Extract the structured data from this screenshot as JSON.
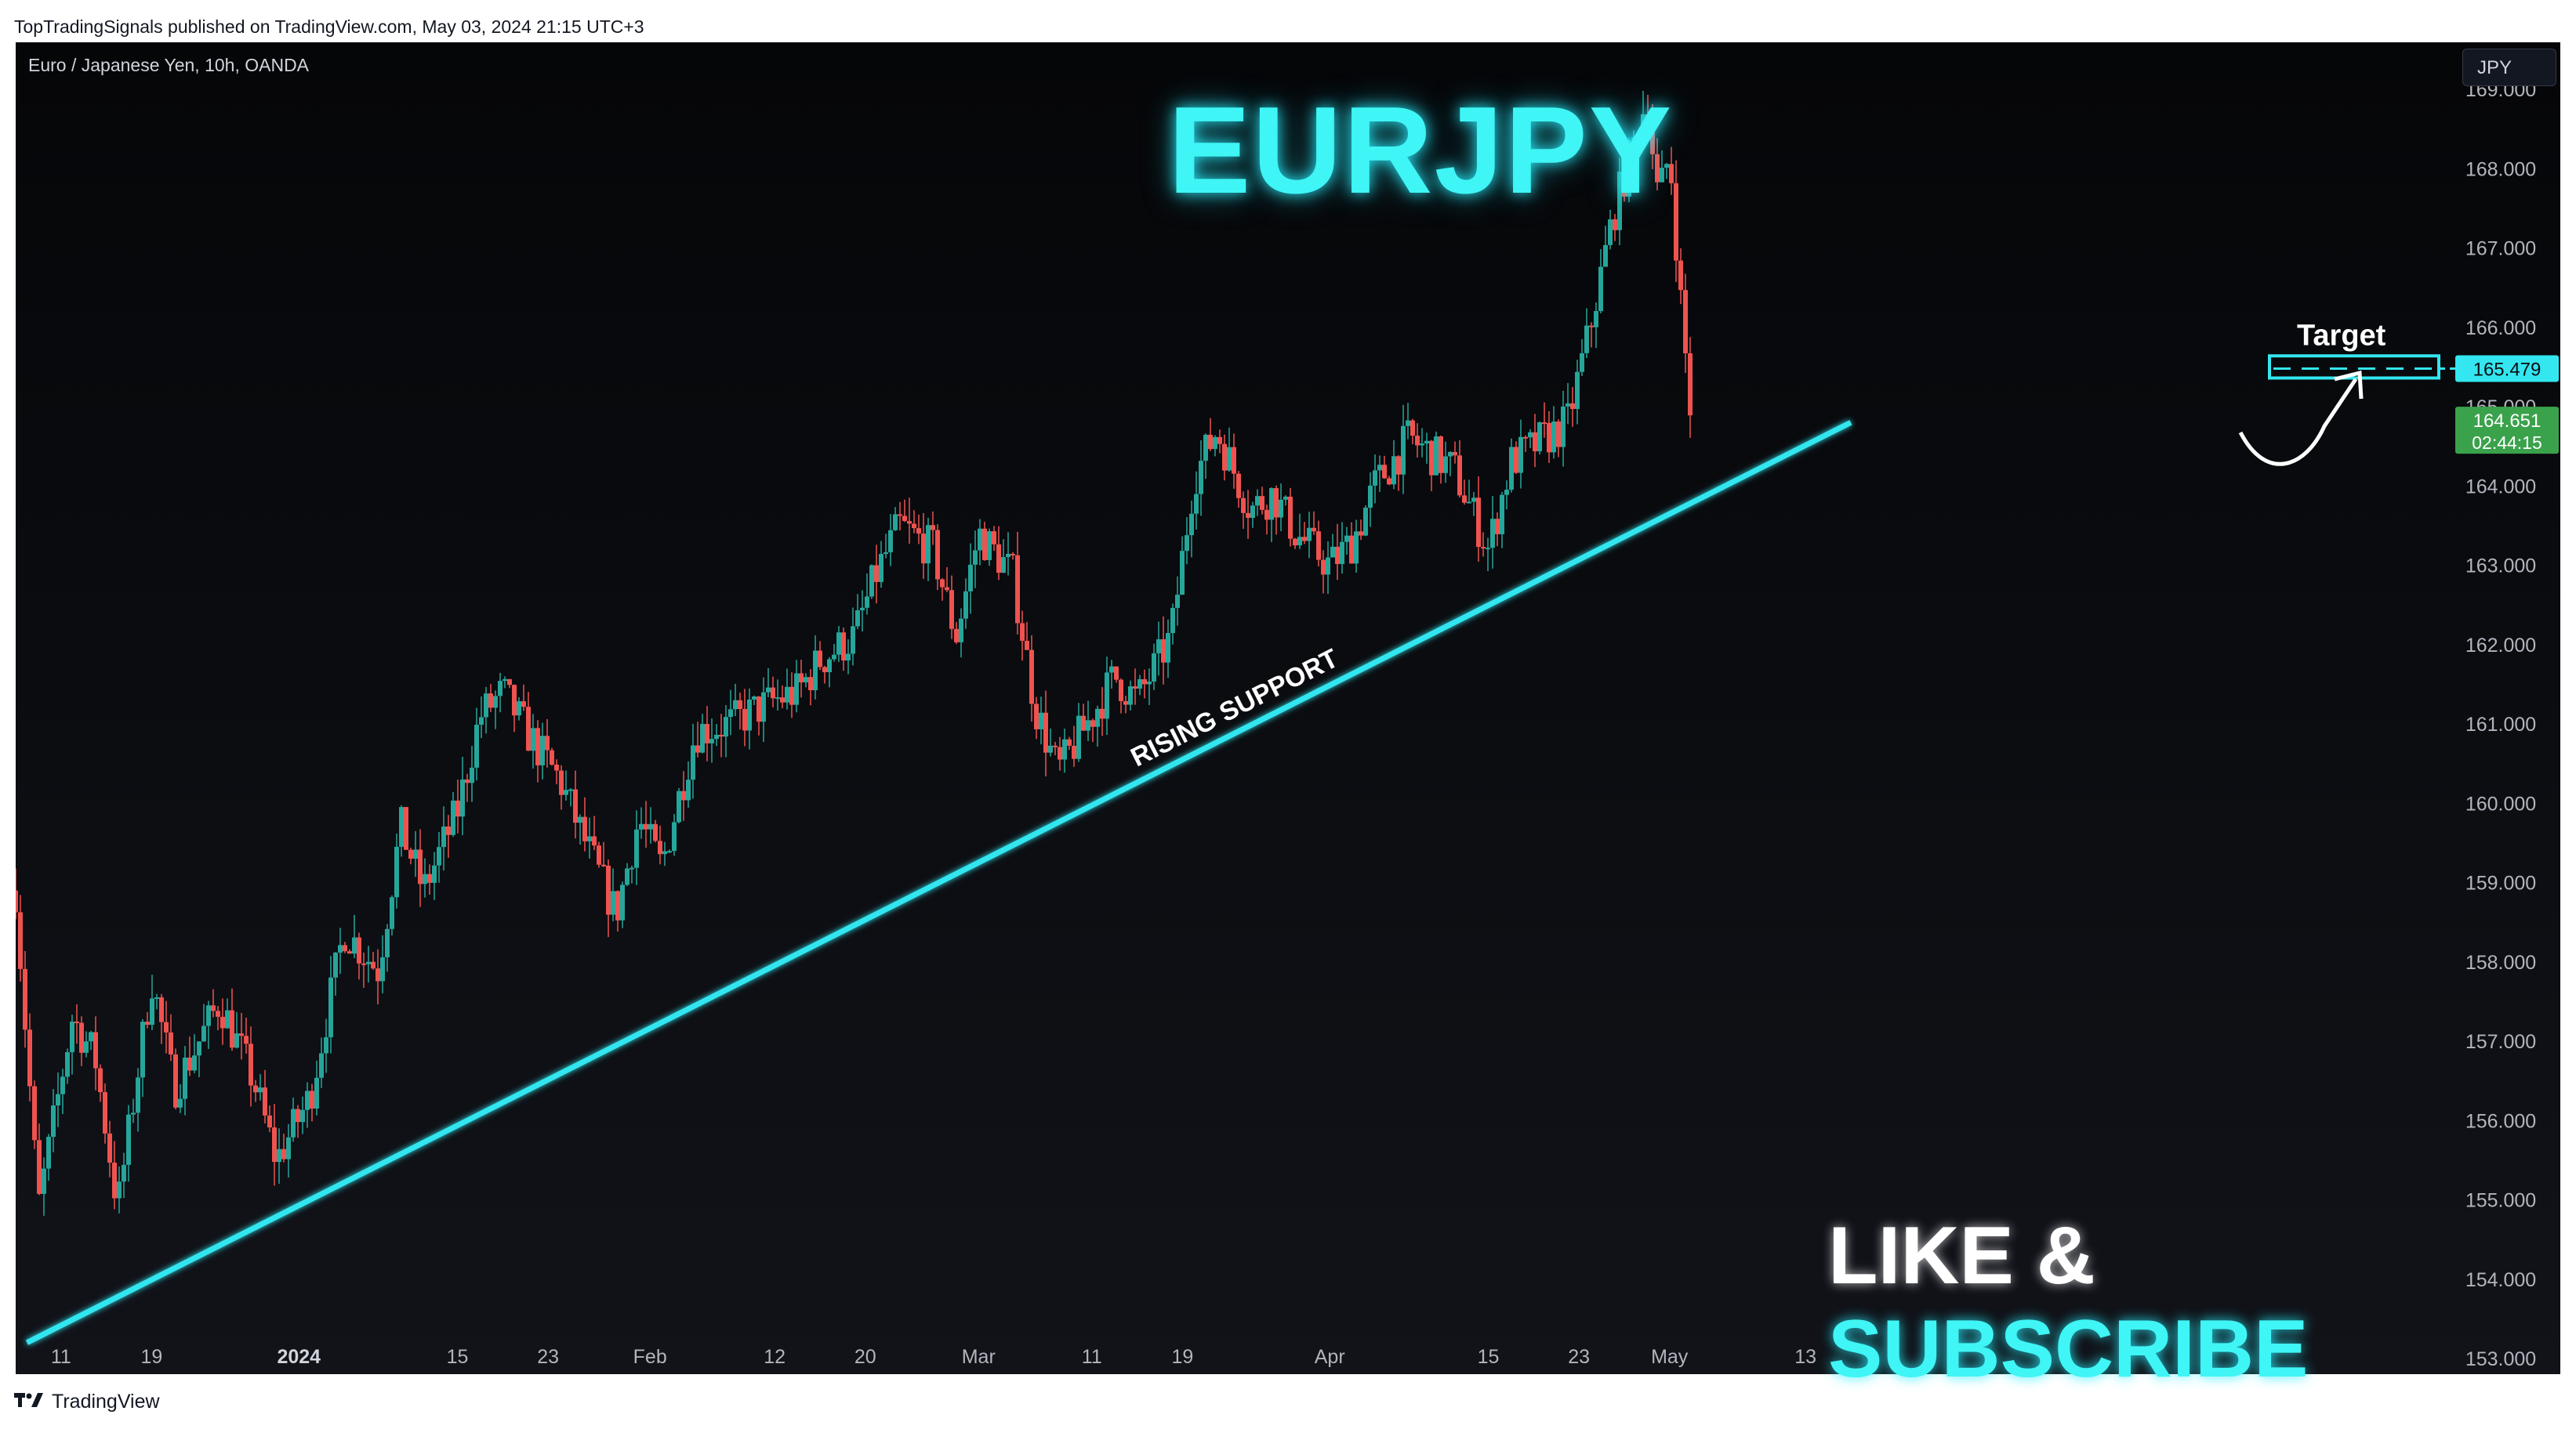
{
  "header": {
    "publish_info": "TopTradingSignals published on TradingView.com, May 03, 2024 21:15 UTC+3"
  },
  "chart": {
    "symbol_line": "Euro / Japanese Yen, 10h, OANDA",
    "currency": "JPY",
    "title": "EURJPY",
    "support_label": "RISING SUPPORT",
    "target_label": "Target",
    "target_price": "165.479",
    "last_price": "164.651",
    "countdown": "02:44:15",
    "cta_like": "LIKE & ",
    "cta_subscribe": "SUBSCRIBE"
  },
  "footer": {
    "brand": "TradingView"
  },
  "colors": {
    "up": "#26a69a",
    "down": "#ef5350",
    "accent": "#33e6f0",
    "background": "#0b0c10",
    "last_price_bg": "#3aa24b"
  },
  "chart_data": {
    "type": "candlestick",
    "y_ticks": [
      "153.000",
      "154.000",
      "155.000",
      "156.000",
      "157.000",
      "158.000",
      "159.000",
      "160.000",
      "161.000",
      "162.000",
      "163.000",
      "164.000",
      "165.000",
      "166.000",
      "167.000",
      "168.000",
      "169.000"
    ],
    "ylim": [
      153.0,
      169.4
    ],
    "x_ticks": [
      {
        "label": "11",
        "bold": false,
        "date": "2023-12-11"
      },
      {
        "label": "19",
        "bold": false,
        "date": "2023-12-19"
      },
      {
        "label": "2024",
        "bold": true,
        "date": "2024-01-01"
      },
      {
        "label": "15",
        "bold": false,
        "date": "2024-01-15"
      },
      {
        "label": "23",
        "bold": false,
        "date": "2024-01-23"
      },
      {
        "label": "Feb",
        "bold": false,
        "date": "2024-02-01"
      },
      {
        "label": "12",
        "bold": false,
        "date": "2024-02-12"
      },
      {
        "label": "20",
        "bold": false,
        "date": "2024-02-20"
      },
      {
        "label": "Mar",
        "bold": false,
        "date": "2024-03-01"
      },
      {
        "label": "11",
        "bold": false,
        "date": "2024-03-11"
      },
      {
        "label": "19",
        "bold": false,
        "date": "2024-03-19"
      },
      {
        "label": "Apr",
        "bold": false,
        "date": "2024-04-01"
      },
      {
        "label": "15",
        "bold": false,
        "date": "2024-04-15"
      },
      {
        "label": "23",
        "bold": false,
        "date": "2024-04-23"
      },
      {
        "label": "May",
        "bold": false,
        "date": "2024-05-01"
      },
      {
        "label": "13",
        "bold": false,
        "date": "2024-05-13"
      }
    ],
    "close_path": [
      [
        "2023-12-07",
        158.9
      ],
      [
        "2023-12-09",
        154.9
      ],
      [
        "2023-12-12",
        157.3
      ],
      [
        "2023-12-14",
        156.8
      ],
      [
        "2023-12-16",
        154.9
      ],
      [
        "2023-12-19",
        157.8
      ],
      [
        "2023-12-21",
        156.4
      ],
      [
        "2023-12-25",
        157.5
      ],
      [
        "2023-12-28",
        156.5
      ],
      [
        "2023-12-30",
        155.5
      ],
      [
        "2024-01-02",
        156.3
      ],
      [
        "2024-01-05",
        158.4
      ],
      [
        "2024-01-08",
        157.9
      ],
      [
        "2024-01-10",
        159.7
      ],
      [
        "2024-01-12",
        158.9
      ],
      [
        "2024-01-15",
        159.9
      ],
      [
        "2024-01-17",
        161.1
      ],
      [
        "2024-01-19",
        161.4
      ],
      [
        "2024-01-22",
        160.7
      ],
      [
        "2024-01-24",
        160.3
      ],
      [
        "2024-01-26",
        159.6
      ],
      [
        "2024-01-29",
        158.6
      ],
      [
        "2024-01-31",
        159.8
      ],
      [
        "2024-02-02",
        159.2
      ],
      [
        "2024-02-05",
        160.9
      ],
      [
        "2024-02-08",
        161.0
      ],
      [
        "2024-02-12",
        161.3
      ],
      [
        "2024-02-14",
        161.4
      ],
      [
        "2024-02-16",
        161.8
      ],
      [
        "2024-02-19",
        162.1
      ],
      [
        "2024-02-21",
        162.9
      ],
      [
        "2024-02-23",
        163.5
      ],
      [
        "2024-02-26",
        163.2
      ],
      [
        "2024-02-28",
        162.1
      ],
      [
        "2024-03-01",
        163.4
      ],
      [
        "2024-03-04",
        162.9
      ],
      [
        "2024-03-06",
        161.2
      ],
      [
        "2024-03-08",
        160.4
      ],
      [
        "2024-03-11",
        161.1
      ],
      [
        "2024-03-13",
        161.6
      ],
      [
        "2024-03-15",
        161.3
      ],
      [
        "2024-03-18",
        162.1
      ],
      [
        "2024-03-20",
        164.1
      ],
      [
        "2024-03-22",
        164.7
      ],
      [
        "2024-03-25",
        163.7
      ],
      [
        "2024-03-27",
        163.9
      ],
      [
        "2024-03-29",
        163.4
      ],
      [
        "2024-04-01",
        163.0
      ],
      [
        "2024-04-03",
        163.3
      ],
      [
        "2024-04-05",
        164.0
      ],
      [
        "2024-04-08",
        164.6
      ],
      [
        "2024-04-10",
        164.4
      ],
      [
        "2024-04-12",
        164.2
      ],
      [
        "2024-04-15",
        163.2
      ],
      [
        "2024-04-17",
        164.3
      ],
      [
        "2024-04-19",
        164.5
      ],
      [
        "2024-04-22",
        164.8
      ],
      [
        "2024-04-24",
        166.0
      ],
      [
        "2024-04-26",
        167.4
      ],
      [
        "2024-04-29",
        168.9
      ],
      [
        "2024-04-30",
        167.6
      ],
      [
        "2024-05-01",
        168.2
      ],
      [
        "2024-05-02",
        166.3
      ],
      [
        "2024-05-03",
        164.7
      ]
    ],
    "support_line": {
      "start": [
        "2023-12-08",
        153.2
      ],
      "end": [
        "2024-05-17",
        164.8
      ]
    },
    "target_zone": [
      165.4,
      165.6
    ],
    "target_price": 165.479,
    "last_price": 164.651
  }
}
